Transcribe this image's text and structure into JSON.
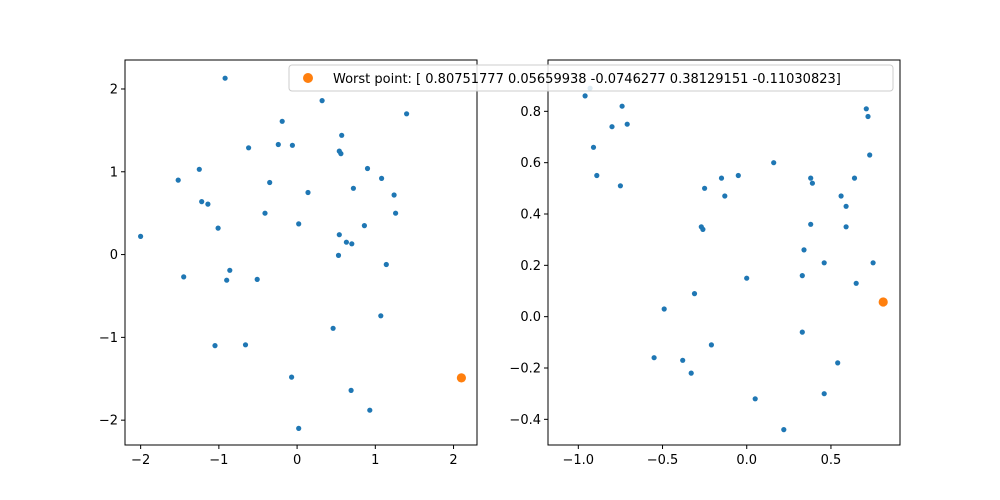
{
  "colors": {
    "points": "#1f77b4",
    "worst": "#ff7f0e",
    "axes": "#000000",
    "legend_border": "#cccccc"
  },
  "legend": {
    "label": "Worst point: [ 0.80751777  0.05659938 -0.0746277   0.38129151 -0.11030823]"
  },
  "chart_data": [
    {
      "type": "scatter",
      "title": "",
      "xlabel": "",
      "ylabel": "",
      "xlim": [
        -2.2,
        2.3
      ],
      "ylim": [
        -2.3,
        2.35
      ],
      "grid": false,
      "xticks": [
        -2,
        -1,
        0,
        1,
        2
      ],
      "yticks": [
        -2,
        -1,
        0,
        1,
        2
      ],
      "xtick_labels": [
        "−2",
        "−1",
        "0",
        "1",
        "2"
      ],
      "ytick_labels": [
        "−2",
        "−1",
        "0",
        "1",
        "2"
      ],
      "series": [
        {
          "points": [
            [
              -0.92,
              2.13
            ],
            [
              0.32,
              1.86
            ],
            [
              1.4,
              1.7
            ],
            [
              -0.19,
              1.61
            ],
            [
              0.57,
              1.44
            ],
            [
              -0.24,
              1.33
            ],
            [
              -0.06,
              1.32
            ],
            [
              -0.62,
              1.29
            ],
            [
              0.54,
              1.25
            ],
            [
              0.56,
              1.22
            ],
            [
              -1.25,
              1.03
            ],
            [
              0.9,
              1.04
            ],
            [
              -1.52,
              0.9
            ],
            [
              1.08,
              0.92
            ],
            [
              -0.35,
              0.87
            ],
            [
              0.72,
              0.8
            ],
            [
              0.14,
              0.75
            ],
            [
              1.24,
              0.72
            ],
            [
              -1.22,
              0.64
            ],
            [
              -1.14,
              0.61
            ],
            [
              -0.41,
              0.5
            ],
            [
              1.26,
              0.5
            ],
            [
              0.02,
              0.37
            ],
            [
              0.86,
              0.35
            ],
            [
              -1.01,
              0.32
            ],
            [
              0.54,
              0.24
            ],
            [
              0.63,
              0.15
            ],
            [
              0.7,
              0.13
            ],
            [
              -2.0,
              0.22
            ],
            [
              0.53,
              -0.01
            ],
            [
              1.14,
              -0.12
            ],
            [
              -0.86,
              -0.19
            ],
            [
              -1.45,
              -0.27
            ],
            [
              -0.9,
              -0.31
            ],
            [
              -0.51,
              -0.3
            ],
            [
              1.07,
              -0.74
            ],
            [
              0.46,
              -0.89
            ],
            [
              -1.05,
              -1.1
            ],
            [
              -0.66,
              -1.09
            ],
            [
              -0.07,
              -1.48
            ],
            [
              0.69,
              -1.64
            ],
            [
              0.93,
              -1.88
            ],
            [
              0.02,
              -2.1
            ]
          ]
        },
        {
          "name": "Worst point",
          "points": [
            [
              2.1,
              -1.49
            ]
          ]
        }
      ]
    },
    {
      "type": "scatter",
      "title": "",
      "xlabel": "",
      "ylabel": "",
      "xlim": [
        -1.18,
        0.91
      ],
      "ylim": [
        -0.5,
        1.0
      ],
      "grid": false,
      "xticks": [
        -1.0,
        -0.5,
        0.0,
        0.5
      ],
      "yticks": [
        -0.4,
        -0.2,
        0.0,
        0.2,
        0.4,
        0.6,
        0.8
      ],
      "xtick_labels": [
        "−1.0",
        "−0.5",
        "0.0",
        "0.5"
      ],
      "ytick_labels": [
        "−0.4",
        "−0.2",
        "0.0",
        "0.2",
        "0.4",
        "0.6",
        "0.8"
      ],
      "series": [
        {
          "points": [
            [
              -0.93,
              0.89
            ],
            [
              -0.96,
              0.86
            ],
            [
              -0.74,
              0.82
            ],
            [
              -0.8,
              0.74
            ],
            [
              -0.71,
              0.75
            ],
            [
              -0.91,
              0.66
            ],
            [
              0.71,
              0.81
            ],
            [
              0.72,
              0.78
            ],
            [
              0.73,
              0.63
            ],
            [
              0.16,
              0.6
            ],
            [
              -0.89,
              0.55
            ],
            [
              -0.05,
              0.55
            ],
            [
              -0.15,
              0.54
            ],
            [
              -0.75,
              0.51
            ],
            [
              0.38,
              0.54
            ],
            [
              0.39,
              0.52
            ],
            [
              0.64,
              0.54
            ],
            [
              -0.25,
              0.5
            ],
            [
              -0.13,
              0.47
            ],
            [
              0.56,
              0.47
            ],
            [
              0.59,
              0.43
            ],
            [
              0.38,
              0.36
            ],
            [
              0.59,
              0.35
            ],
            [
              -0.27,
              0.35
            ],
            [
              -0.26,
              0.34
            ],
            [
              0.34,
              0.26
            ],
            [
              0.46,
              0.21
            ],
            [
              0.75,
              0.21
            ],
            [
              0.0,
              0.15
            ],
            [
              0.33,
              0.16
            ],
            [
              0.65,
              0.13
            ],
            [
              -0.31,
              0.09
            ],
            [
              -0.49,
              0.03
            ],
            [
              0.33,
              -0.06
            ],
            [
              -0.21,
              -0.11
            ],
            [
              -0.55,
              -0.16
            ],
            [
              -0.38,
              -0.17
            ],
            [
              0.54,
              -0.18
            ],
            [
              -0.33,
              -0.22
            ],
            [
              0.05,
              -0.32
            ],
            [
              0.46,
              -0.3
            ],
            [
              0.22,
              -0.44
            ]
          ]
        },
        {
          "name": "Worst point",
          "points": [
            [
              0.81,
              0.057
            ]
          ]
        }
      ]
    }
  ]
}
